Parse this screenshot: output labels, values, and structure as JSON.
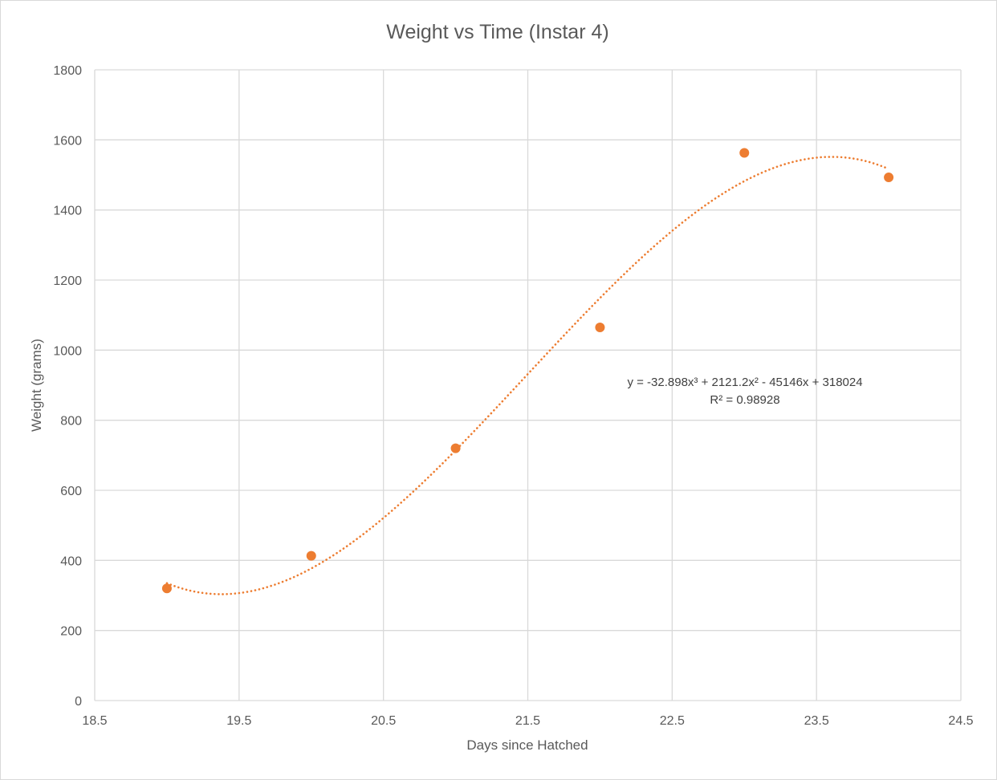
{
  "chart_data": {
    "type": "scatter",
    "title": "Weight vs Time  (Instar 4)",
    "xlabel": "Days since Hatched",
    "ylabel": "Weight (grams)",
    "xlim": [
      18.5,
      24.5
    ],
    "ylim": [
      0,
      1800
    ],
    "x_ticks": [
      "18.5",
      "19.5",
      "20.5",
      "21.5",
      "22.5",
      "23.5",
      "24.5"
    ],
    "y_ticks": [
      "0",
      "200",
      "400",
      "600",
      "800",
      "1000",
      "1200",
      "1400",
      "1600",
      "1800"
    ],
    "grid": true,
    "series": [
      {
        "x": [
          19,
          20,
          21,
          22,
          23,
          24
        ],
        "y": [
          320,
          413,
          720,
          1065,
          1563,
          1493
        ]
      }
    ],
    "trendline": {
      "type": "polynomial",
      "order": 3,
      "equation": "y = -32.898x³ + 2121.2x² - 45146x + 318024",
      "r_squared": "R² = 0.98928"
    },
    "colors": {
      "marker": "#ED7D31",
      "trendline": "#ED7D31",
      "grid": "#d9d9d9",
      "text": "#595959"
    }
  }
}
